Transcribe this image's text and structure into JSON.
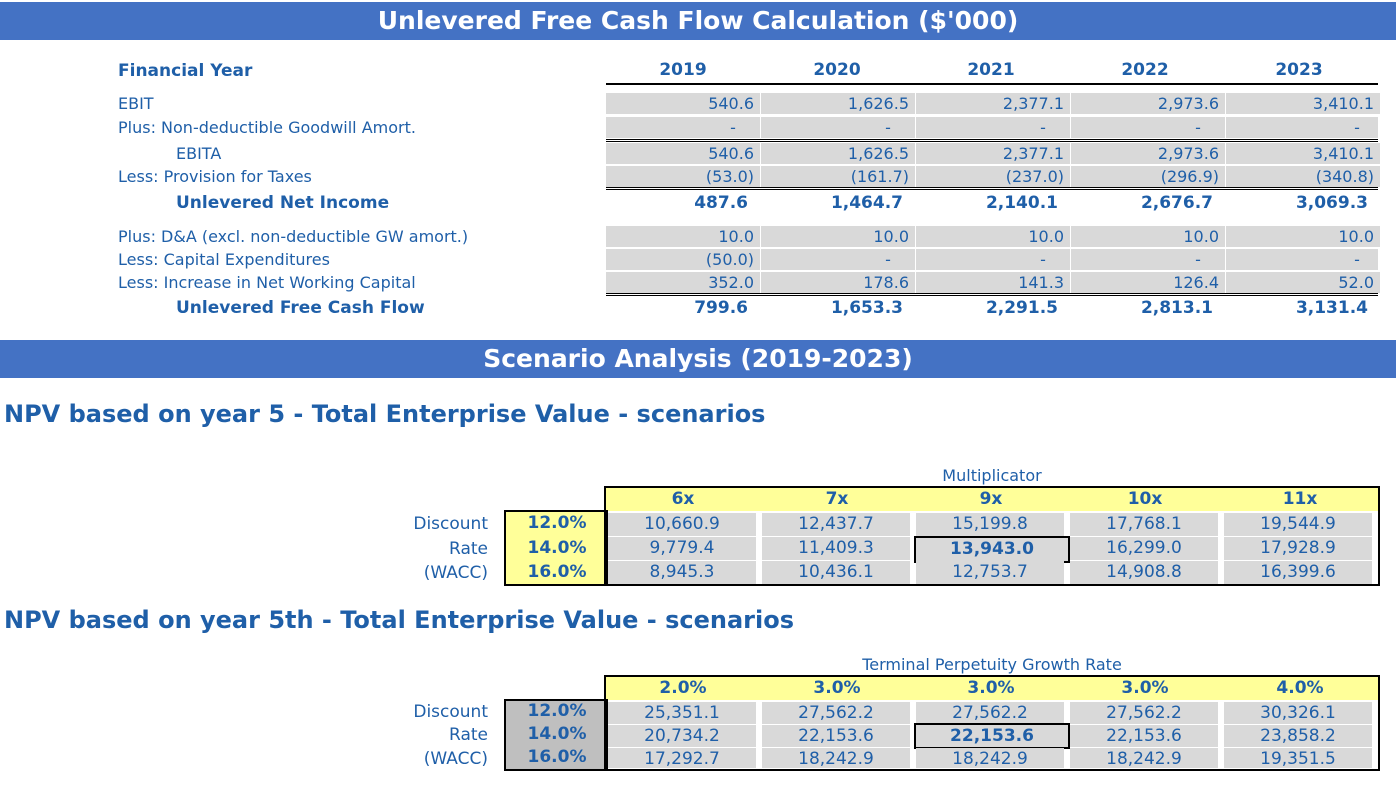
{
  "fcf": {
    "title": "Unlevered Free Cash Flow Calculation ($'000)",
    "header_label": "Financial Year",
    "years": [
      "2019",
      "2020",
      "2021",
      "2022",
      "2023"
    ],
    "rows": {
      "ebit": {
        "label": "EBIT",
        "values": [
          "540.6",
          "1,626.5",
          "2,377.1",
          "2,973.6",
          "3,410.1"
        ]
      },
      "goodwill": {
        "label": "Plus: Non-deductible Goodwill Amort.",
        "values": [
          "-",
          "-",
          "-",
          "-",
          "-"
        ]
      },
      "ebita": {
        "label": "EBITA",
        "values": [
          "540.6",
          "1,626.5",
          "2,377.1",
          "2,973.6",
          "3,410.1"
        ]
      },
      "taxes": {
        "label": "Less: Provision for Taxes",
        "values": [
          "(53.0)",
          "(161.7)",
          "(237.0)",
          "(296.9)",
          "(340.8)"
        ]
      },
      "net_income": {
        "label": "Unlevered Net Income",
        "values": [
          "487.6",
          "1,464.7",
          "2,140.1",
          "2,676.7",
          "3,069.3"
        ]
      },
      "da": {
        "label": "Plus: D&A (excl. non-deductible GW amort.)",
        "values": [
          "10.0",
          "10.0",
          "10.0",
          "10.0",
          "10.0"
        ]
      },
      "capex": {
        "label": "Less: Capital Expenditures",
        "values": [
          "(50.0)",
          "-",
          "-",
          "-",
          "-"
        ]
      },
      "nwc": {
        "label": "Less: Increase in Net Working Capital",
        "values": [
          "352.0",
          "178.6",
          "141.3",
          "126.4",
          "52.0"
        ]
      },
      "ufcf": {
        "label": "Unlevered Free Cash Flow",
        "values": [
          "799.6",
          "1,653.3",
          "2,291.5",
          "2,813.1",
          "3,131.4"
        ]
      }
    }
  },
  "scenario": {
    "title": "Scenario Analysis (2019-2023)",
    "row_labels": [
      "Discount",
      "Rate",
      "(WACC)"
    ],
    "table1": {
      "title": "NPV based on year 5 - Total Enterprise Value - scenarios",
      "col_header": "Multiplicator",
      "columns": [
        "6x",
        "7x",
        "9x",
        "10x",
        "11x"
      ],
      "rates": [
        "12.0%",
        "14.0%",
        "16.0%"
      ],
      "values": [
        [
          "10,660.9",
          "12,437.7",
          "15,199.8",
          "17,768.1",
          "19,544.9"
        ],
        [
          "9,779.4",
          "11,409.3",
          "13,943.0",
          "16,299.0",
          "17,928.9"
        ],
        [
          "8,945.3",
          "10,436.1",
          "12,753.7",
          "14,908.8",
          "16,399.6"
        ]
      ],
      "rate_bg": "#ffff99"
    },
    "table2": {
      "title": "NPV based on year 5th - Total Enterprise Value - scenarios",
      "col_header": "Terminal Perpetuity Growth Rate",
      "columns": [
        "2.0%",
        "3.0%",
        "3.0%",
        "3.0%",
        "4.0%"
      ],
      "rates": [
        "12.0%",
        "14.0%",
        "16.0%"
      ],
      "values": [
        [
          "25,351.1",
          "27,562.2",
          "27,562.2",
          "27,562.2",
          "30,326.1"
        ],
        [
          "20,734.2",
          "22,153.6",
          "22,153.6",
          "22,153.6",
          "23,858.2"
        ],
        [
          "17,292.7",
          "18,242.9",
          "18,242.9",
          "18,242.9",
          "19,351.5"
        ]
      ],
      "rate_bg": "#bfbfbf"
    }
  },
  "colors": {
    "banner": "#4472c4",
    "text": "#1f5fa8",
    "cell": "#d9d9d9",
    "header_yellow": "#ffff99"
  }
}
